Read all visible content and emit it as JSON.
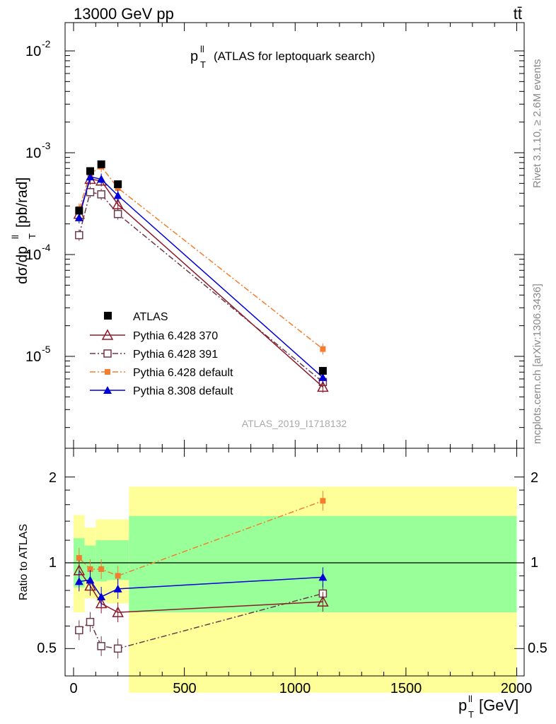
{
  "header": {
    "energy_label": "13000 GeV pp",
    "process_label": "tt̄",
    "plot_title": "(ATLAS for leptoquark search)",
    "analysis_id": "ATLAS_2019_I1718132",
    "side_label_rivet": "Rivet 3.1.10, ≥ 2.6M events",
    "side_label_mcplots": "mcplots.cern.ch [arXiv:1306.3436]"
  },
  "axes": {
    "y_main_label": "dσ/dp",
    "y_main_unit": "[pb/rad]",
    "y_ratio_label": "Ratio to ATLAS",
    "x_label_unit": "[GeV]",
    "x_ticks": [
      "0",
      "500",
      "1000",
      "1500",
      "2000"
    ],
    "y_main_ticks": [
      "10",
      "10",
      "10",
      "10"
    ],
    "y_main_tick_exponents": [
      "-2",
      "-3",
      "-4",
      "-5"
    ],
    "y_ratio_ticks": [
      "2",
      "1",
      "0.5"
    ]
  },
  "chart_data": {
    "type": "scatter",
    "xlim": [
      -20,
      2020
    ],
    "main_ylim": [
      1.8e-06,
      0.018
    ],
    "main_log_y": true,
    "ratio_ylim": [
      0.4,
      2.35
    ],
    "ratio_log_y": true,
    "x": [
      25,
      75,
      125,
      200,
      1125
    ],
    "series": [
      {
        "name": "ATLAS",
        "key": "atlas",
        "color": "#000000",
        "values": [
          0.00027,
          0.00066,
          0.00077,
          0.00049,
          7.2e-06
        ],
        "ratio": [
          1,
          1,
          1,
          1,
          1
        ]
      },
      {
        "name": "Pythia 6.428 370",
        "key": "p370",
        "color": "#8b1a2b",
        "values": [
          0.00025,
          0.00055,
          0.00053,
          0.00031,
          5e-06
        ],
        "ratio": [
          0.94,
          0.83,
          0.72,
          0.67,
          0.73
        ]
      },
      {
        "name": "Pythia 6.428 391",
        "key": "p391",
        "color": "#6b3a4a",
        "values": [
          0.000155,
          0.00041,
          0.00039,
          0.00025,
          5.6e-06
        ],
        "ratio": [
          0.58,
          0.62,
          0.51,
          0.5,
          0.78
        ]
      },
      {
        "name": "Pythia 6.428 default",
        "key": "p6def",
        "color": "#f37e2f",
        "values": [
          0.00028,
          0.00062,
          0.00073,
          0.00045,
          1.18e-05
        ],
        "ratio": [
          1.04,
          0.95,
          0.95,
          0.9,
          1.65
        ]
      },
      {
        "name": "Pythia 8.308 default",
        "key": "p8def",
        "color": "#0000d8",
        "values": [
          0.00023,
          0.00058,
          0.00055,
          0.00038,
          6.2e-06
        ],
        "ratio": [
          0.86,
          0.87,
          0.76,
          0.81,
          0.89
        ]
      }
    ],
    "uncertainty_bins": [
      {
        "x_range": [
          0,
          50
        ],
        "yellow": [
          0.67,
          1.47
        ],
        "green": [
          0.82,
          1.22
        ]
      },
      {
        "x_range": [
          50,
          100
        ],
        "yellow": [
          0.75,
          1.33
        ],
        "green": [
          0.87,
          1.15
        ]
      },
      {
        "x_range": [
          100,
          150
        ],
        "yellow": [
          0.73,
          1.42
        ],
        "green": [
          0.86,
          1.2
        ]
      },
      {
        "x_range": [
          150,
          250
        ],
        "yellow": [
          0.72,
          1.42
        ],
        "green": [
          0.87,
          1.2
        ]
      },
      {
        "x_range": [
          250,
          2000
        ],
        "yellow": [
          0.35,
          1.85
        ],
        "green": [
          0.67,
          1.46
        ]
      }
    ]
  }
}
